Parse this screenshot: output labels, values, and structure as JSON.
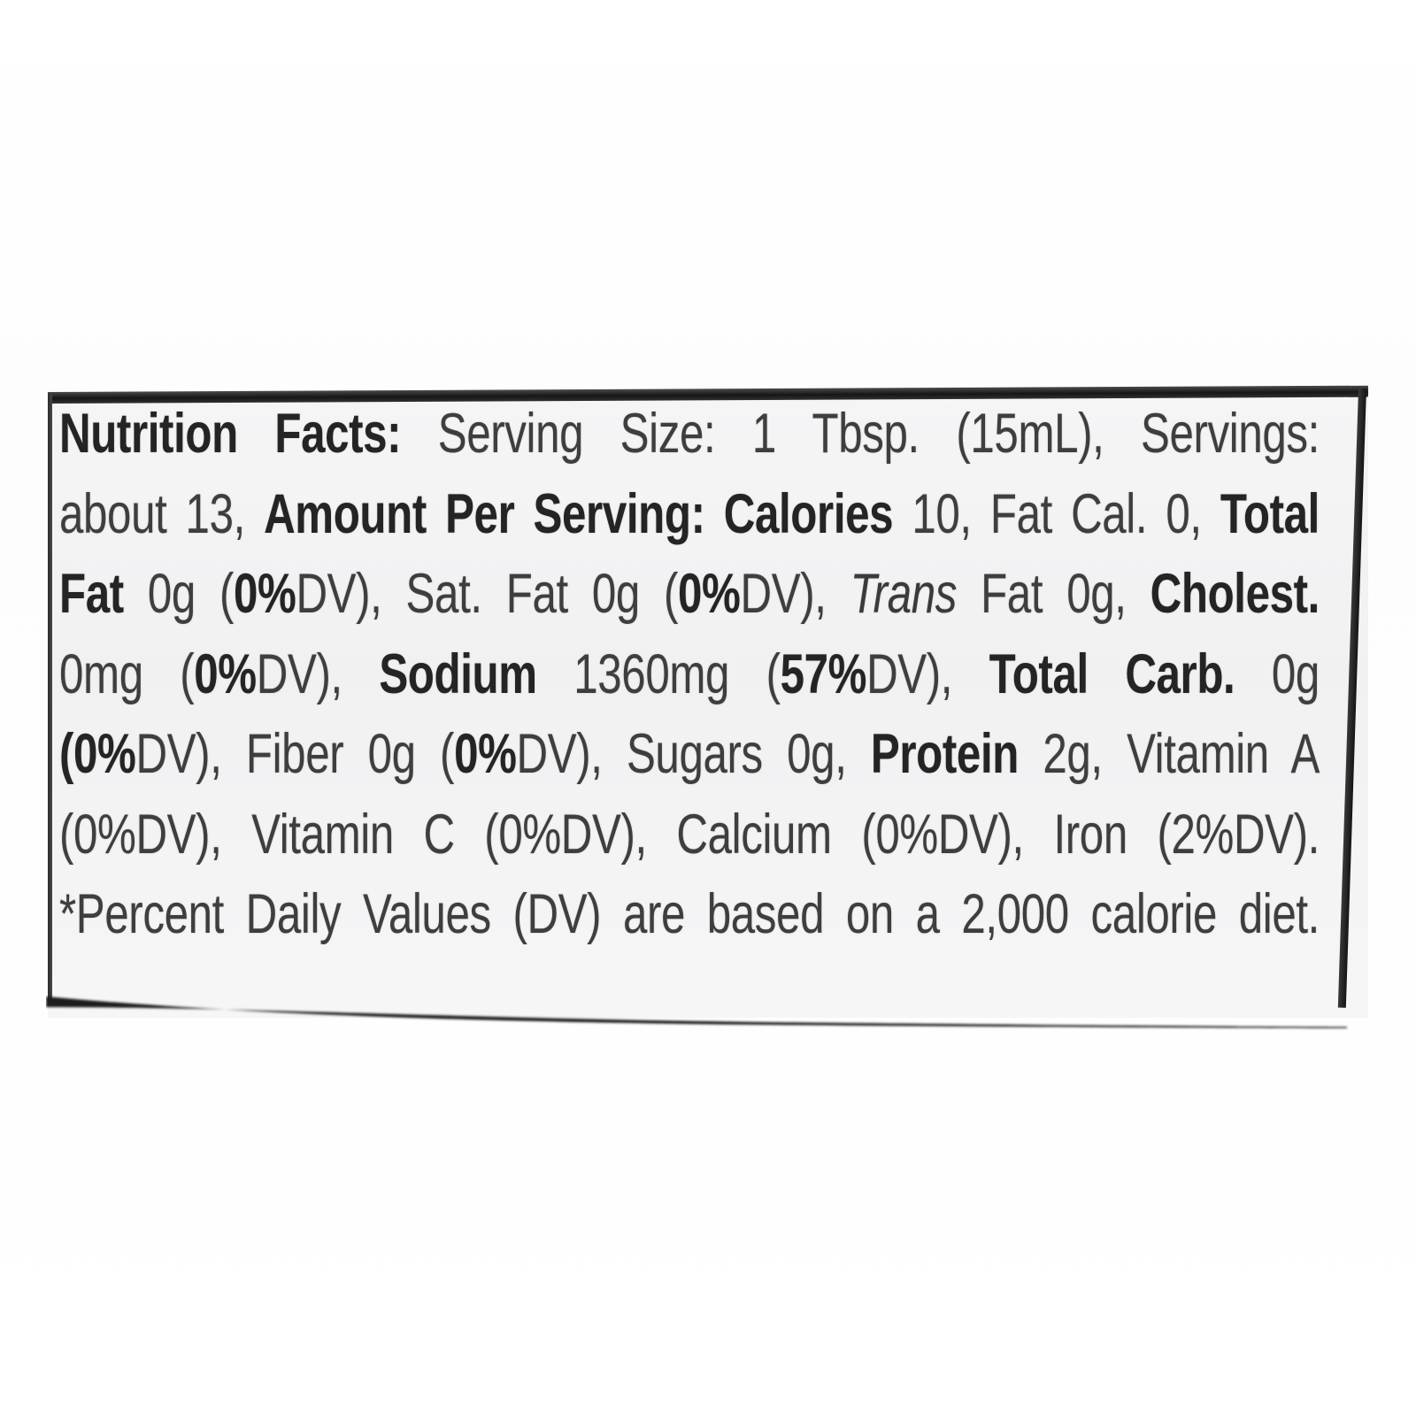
{
  "label": {
    "lines": [
      {
        "runs": [
          {
            "t": "Nutrition Facts:",
            "s": "b"
          },
          {
            "t": " Serving Size: 1 Tbsp. (15mL), Servings:",
            "s": "r"
          }
        ]
      },
      {
        "runs": [
          {
            "t": "about 13, ",
            "s": "r"
          },
          {
            "t": "Amount Per Serving: Calories",
            "s": "b"
          },
          {
            "t": " 10, Fat Cal. 0, ",
            "s": "r"
          },
          {
            "t": "Total",
            "s": "b"
          }
        ]
      },
      {
        "runs": [
          {
            "t": "Fat",
            "s": "b"
          },
          {
            "t": " 0g (",
            "s": "r"
          },
          {
            "t": "0%",
            "s": "b"
          },
          {
            "t": "DV), Sat. Fat 0g (",
            "s": "r"
          },
          {
            "t": "0%",
            "s": "b"
          },
          {
            "t": "DV), ",
            "s": "r"
          },
          {
            "t": "Trans",
            "s": "i"
          },
          {
            "t": " Fat 0g, ",
            "s": "r"
          },
          {
            "t": "Cholest.",
            "s": "b"
          }
        ]
      },
      {
        "runs": [
          {
            "t": "0mg (",
            "s": "r"
          },
          {
            "t": "0%",
            "s": "b"
          },
          {
            "t": "DV), ",
            "s": "r"
          },
          {
            "t": "Sodium",
            "s": "b"
          },
          {
            "t": " 1360mg (",
            "s": "r"
          },
          {
            "t": "57%",
            "s": "b"
          },
          {
            "t": "DV), ",
            "s": "r"
          },
          {
            "t": "Total Carb.",
            "s": "b"
          },
          {
            "t": " 0g",
            "s": "r"
          }
        ]
      },
      {
        "runs": [
          {
            "t": "(",
            "s": "b"
          },
          {
            "t": "0%",
            "s": "b"
          },
          {
            "t": "DV), Fiber 0g (",
            "s": "r"
          },
          {
            "t": "0%",
            "s": "b"
          },
          {
            "t": "DV), Sugars 0g, ",
            "s": "r"
          },
          {
            "t": "Protein",
            "s": "b"
          },
          {
            "t": " 2g, Vitamin A",
            "s": "r"
          }
        ]
      },
      {
        "runs": [
          {
            "t": "(0%DV), Vitamin C (0%DV), Calcium (0%DV), Iron (2%DV).",
            "s": "r"
          }
        ]
      },
      {
        "runs": [
          {
            "t": "*Percent Daily Values (DV) are based on a 2,000 calorie diet.",
            "s": "r"
          }
        ]
      }
    ],
    "nutrition_values": {
      "serving_size": "1 Tbsp. (15mL)",
      "servings": "about 13",
      "calories": "10",
      "fat_calories": "0",
      "total_fat": "0g (0%DV)",
      "saturated_fat": "0g (0%DV)",
      "trans_fat": "0g",
      "cholesterol": "0mg (0%DV)",
      "sodium": "1360mg (57%DV)",
      "total_carbohydrate": "0g (0%DV)",
      "fiber": "0g (0%DV)",
      "sugars": "0g",
      "protein": "2g",
      "vitamin_a": "0%DV",
      "vitamin_c": "0%DV",
      "calcium": "0%DV",
      "iron": "2%DV",
      "footnote": "*Percent Daily Values (DV) are based on a 2,000 calorie diet."
    }
  },
  "colors": {
    "page_bg": "#ffffff",
    "label_bg": "#f3f3f4",
    "edge_dark": "#1c1c1c",
    "text_regular": "#3e3e3e",
    "text_bold": "#242424"
  }
}
